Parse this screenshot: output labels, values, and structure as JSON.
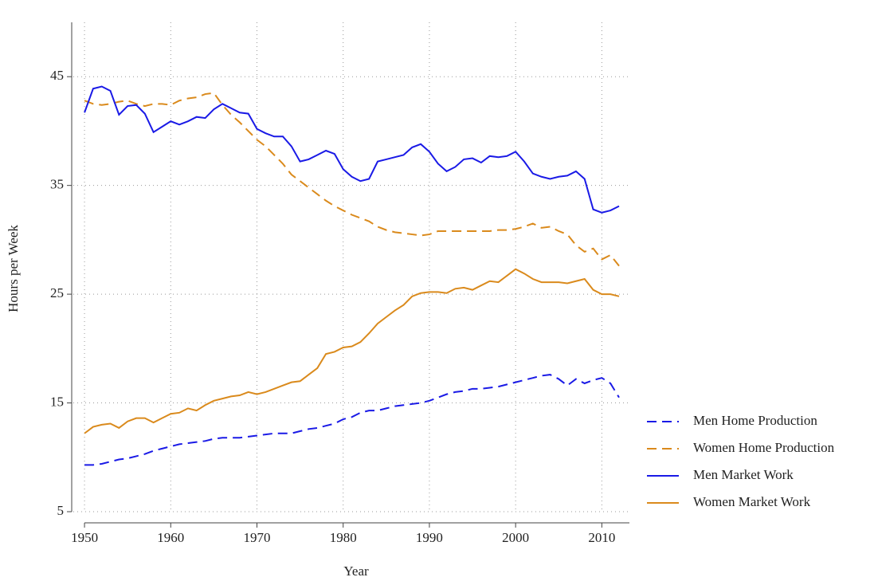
{
  "chart_data": {
    "type": "line",
    "x_label": "Year",
    "y_label": "Hours per Week",
    "x": [
      1950,
      1951,
      1952,
      1953,
      1954,
      1955,
      1956,
      1957,
      1958,
      1959,
      1960,
      1961,
      1962,
      1963,
      1964,
      1965,
      1966,
      1967,
      1968,
      1969,
      1970,
      1971,
      1972,
      1973,
      1974,
      1975,
      1976,
      1977,
      1978,
      1979,
      1980,
      1981,
      1982,
      1983,
      1984,
      1985,
      1986,
      1987,
      1988,
      1989,
      1990,
      1991,
      1992,
      1993,
      1994,
      1995,
      1996,
      1997,
      1998,
      1999,
      2000,
      2001,
      2002,
      2003,
      2004,
      2005,
      2006,
      2007,
      2008,
      2009,
      2010,
      2011,
      2012
    ],
    "series": [
      {
        "name": "Men Home Production",
        "color": "#1a1ae6",
        "dash": true,
        "values": [
          9.3,
          9.3,
          9.4,
          9.6,
          9.8,
          9.9,
          10.1,
          10.3,
          10.6,
          10.8,
          11.0,
          11.2,
          11.3,
          11.4,
          11.5,
          11.7,
          11.8,
          11.8,
          11.8,
          11.9,
          12.0,
          12.1,
          12.2,
          12.2,
          12.2,
          12.4,
          12.6,
          12.7,
          12.9,
          13.1,
          13.5,
          13.7,
          14.1,
          14.3,
          14.3,
          14.5,
          14.7,
          14.8,
          14.9,
          15.0,
          15.2,
          15.5,
          15.8,
          16.0,
          16.1,
          16.3,
          16.3,
          16.4,
          16.5,
          16.7,
          16.9,
          17.1,
          17.3,
          17.5,
          17.6,
          17.2,
          16.6,
          17.2,
          16.8,
          17.1,
          17.3,
          16.8,
          15.5
        ]
      },
      {
        "name": "Women Home Production",
        "color": "#da8a1c",
        "dash": true,
        "values": [
          42.8,
          42.5,
          42.4,
          42.5,
          42.7,
          42.8,
          42.5,
          42.3,
          42.5,
          42.5,
          42.4,
          42.8,
          43.0,
          43.1,
          43.4,
          43.5,
          42.4,
          41.5,
          40.8,
          40.0,
          39.2,
          38.6,
          37.8,
          37.0,
          36.0,
          35.4,
          34.8,
          34.2,
          33.6,
          33.1,
          32.7,
          32.3,
          32.0,
          31.7,
          31.2,
          30.9,
          30.7,
          30.6,
          30.5,
          30.4,
          30.5,
          30.8,
          30.8,
          30.8,
          30.8,
          30.8,
          30.8,
          30.8,
          30.9,
          30.9,
          31.0,
          31.2,
          31.5,
          31.1,
          31.2,
          30.8,
          30.5,
          29.5,
          28.9,
          29.2,
          28.2,
          28.6,
          27.6
        ]
      },
      {
        "name": "Men Market Work",
        "color": "#1a1ae6",
        "dash": false,
        "values": [
          41.7,
          43.9,
          44.1,
          43.7,
          41.5,
          42.3,
          42.4,
          41.6,
          39.9,
          40.4,
          40.9,
          40.6,
          40.9,
          41.3,
          41.2,
          42.0,
          42.5,
          42.1,
          41.7,
          41.6,
          40.2,
          39.8,
          39.5,
          39.5,
          38.6,
          37.2,
          37.4,
          37.8,
          38.2,
          37.9,
          36.5,
          35.8,
          35.4,
          35.6,
          37.2,
          37.4,
          37.6,
          37.8,
          38.5,
          38.8,
          38.1,
          37.0,
          36.3,
          36.7,
          37.4,
          37.5,
          37.1,
          37.7,
          37.6,
          37.7,
          38.1,
          37.2,
          36.1,
          35.8,
          35.6,
          35.8,
          35.9,
          36.3,
          35.6,
          32.8,
          32.5,
          32.7,
          33.1
        ]
      },
      {
        "name": "Women Market Work",
        "color": "#da8a1c",
        "dash": false,
        "values": [
          12.2,
          12.8,
          13.0,
          13.1,
          12.7,
          13.3,
          13.6,
          13.6,
          13.2,
          13.6,
          14.0,
          14.1,
          14.5,
          14.3,
          14.8,
          15.2,
          15.4,
          15.6,
          15.7,
          16.0,
          15.8,
          16.0,
          16.3,
          16.6,
          16.9,
          17.0,
          17.6,
          18.2,
          19.5,
          19.7,
          20.1,
          20.2,
          20.6,
          21.4,
          22.3,
          22.9,
          23.5,
          24.0,
          24.8,
          25.1,
          25.2,
          25.2,
          25.1,
          25.5,
          25.6,
          25.4,
          25.8,
          26.2,
          26.1,
          26.7,
          27.3,
          26.9,
          26.4,
          26.1,
          26.1,
          26.1,
          26.0,
          26.2,
          26.4,
          25.4,
          25.0,
          25.0,
          24.8
        ]
      }
    ],
    "xlim": [
      1948.7,
      2013.2
    ],
    "xticks": [
      1950,
      1960,
      1970,
      1980,
      1990,
      2000,
      2010
    ],
    "ylim": [
      5,
      50
    ],
    "yticks": [
      5,
      15,
      25,
      35,
      45
    ],
    "grid": true,
    "legend_position": "lower-right"
  }
}
